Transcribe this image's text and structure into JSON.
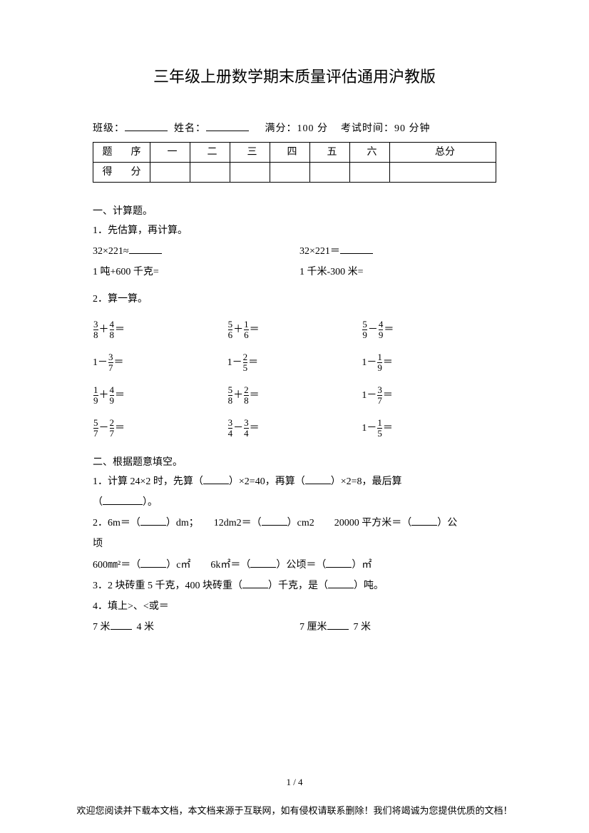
{
  "title": "三年级上册数学期末质量评估通用沪教版",
  "meta": {
    "class_label": "班级：",
    "name_label": "姓名：",
    "full_score_label": "满分：",
    "full_score_value": "100 分",
    "time_label": "考试时间：",
    "time_value": "90 分钟"
  },
  "score_table": {
    "row1": [
      "题　序",
      "一",
      "二",
      "三",
      "四",
      "五",
      "六",
      "总分"
    ],
    "row2_label": "得　分"
  },
  "sec1": {
    "heading": "一、计算题。",
    "q1_label": "1．先估算，再计算。",
    "q1_left": "32×221≈",
    "q1_right": "32×221＝",
    "q1b_left": "1 吨+600 千克=",
    "q1b_right": "1 千米-300 米=",
    "q2_label": "2．算一算。",
    "fractions": [
      [
        {
          "a": "3",
          "b": "8",
          "op": "＋",
          "c": "4",
          "d": "8"
        },
        {
          "a": "5",
          "b": "6",
          "op": "＋",
          "c": "1",
          "d": "6"
        },
        {
          "a": "5",
          "b": "9",
          "op": "－",
          "c": "4",
          "d": "9"
        }
      ],
      [
        {
          "one": true,
          "op": "－",
          "c": "3",
          "d": "7"
        },
        {
          "one": true,
          "op": "－",
          "c": "2",
          "d": "5"
        },
        {
          "one": true,
          "op": "－",
          "c": "1",
          "d": "9"
        }
      ],
      [
        {
          "a": "1",
          "b": "9",
          "op": "＋",
          "c": "4",
          "d": "9"
        },
        {
          "a": "5",
          "b": "8",
          "op": "＋",
          "c": "2",
          "d": "8"
        },
        {
          "one": true,
          "op": "－",
          "c": "3",
          "d": "7"
        }
      ],
      [
        {
          "a": "5",
          "b": "7",
          "op": "－",
          "c": "2",
          "d": "7"
        },
        {
          "a": "3",
          "b": "4",
          "op": "－",
          "c": "3",
          "d": "4"
        },
        {
          "one": true,
          "op": "－",
          "c": "1",
          "d": "5"
        }
      ]
    ]
  },
  "sec2": {
    "heading": "二、根据题意填空。",
    "q1a": "1．计算 24×2 时，先算（",
    "q1b": "）×2=40，再算（",
    "q1c": "）×2=8，最后算",
    "q1d": "（",
    "q1e": "）。",
    "q2a": "2．6m＝（",
    "q2b": "）dm；　　12dm2＝（",
    "q2c": "）cm2　　20000 平方米＝（",
    "q2d": "）公",
    "q2e": "顷",
    "q2f": "600㎜²＝（",
    "q2g": "）c㎡　　6k㎡＝（",
    "q2h": "）公顷＝（",
    "q2i": "）㎡",
    "q3a": "3．2 块砖重 5 千克，400 块砖重（",
    "q3b": "）千克，是（",
    "q3c": "）吨。",
    "q4": "4．填上>、<或＝",
    "q4_left": "7 米",
    "q4_left2": "4 米",
    "q4_right": "7 厘米",
    "q4_right2": "7 米"
  },
  "page_num": "1 / 4",
  "footer": "欢迎您阅读并下载本文档，本文档来源于互联网，如有侵权请联系删除！我们将竭诚为您提供优质的文档！"
}
